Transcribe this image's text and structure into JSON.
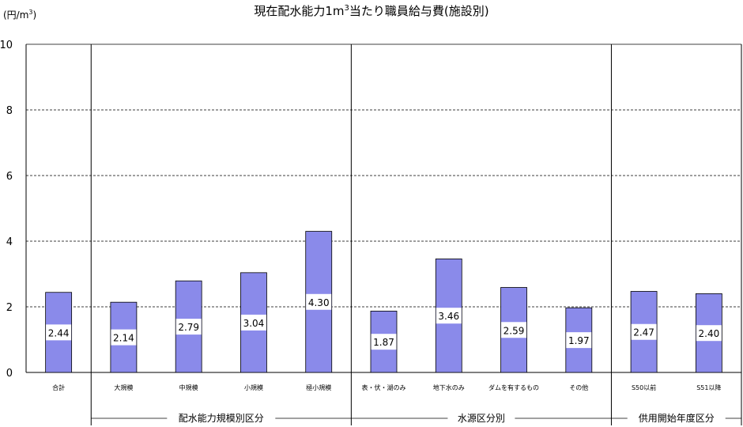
{
  "chart_data": {
    "type": "bar",
    "title": "現在配水能力1m³当たり職員給与費(施設別)",
    "title_main": "現在配水能力1m",
    "title_sup": "3",
    "title_tail": "当たり職員給与費(施設別)",
    "ylabel": "(円/m³)",
    "ylabel_main": "(円/m",
    "ylabel_sup": "3",
    "ylabel_tail": ")",
    "ylim": [
      0,
      10
    ],
    "yticks": [
      "0",
      "2",
      "4",
      "6",
      "8",
      "10"
    ],
    "grid": true,
    "bar_color": "#8a8aea",
    "categories": [
      "合計",
      "大規模",
      "中規模",
      "小規模",
      "極小規模",
      "表・伏・湖のみ",
      "地下水のみ",
      "ダムを有するもの",
      "その他",
      "S50以前",
      "S51以降"
    ],
    "values": [
      2.44,
      2.14,
      2.79,
      3.04,
      4.3,
      1.87,
      3.46,
      2.59,
      1.97,
      2.47,
      2.4
    ],
    "labels": [
      "2.44",
      "2.14",
      "2.79",
      "3.04",
      "4.30",
      "1.87",
      "3.46",
      "2.59",
      "1.97",
      "2.47",
      "2.40"
    ],
    "groups": [
      {
        "label": "配水能力規模別区分",
        "start": 1,
        "end": 4
      },
      {
        "label": "水源区分別",
        "start": 5,
        "end": 8
      },
      {
        "label": "供用開始年度区分",
        "start": 9,
        "end": 10
      }
    ]
  }
}
